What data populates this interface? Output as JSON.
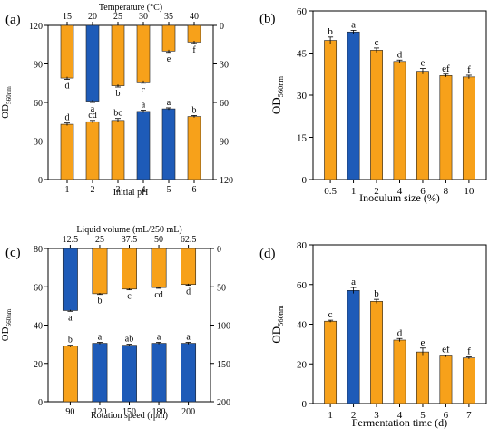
{
  "colors": {
    "orange": "#F7A11A",
    "blue": "#1E5BB8",
    "axis": "#000000"
  },
  "chart_data": [
    {
      "panel": "(a)",
      "type": "bar",
      "bottom": {
        "xlabel": "Initial pH",
        "ylabel": "OD",
        "ylabel_sub": "560nm",
        "ylim": [
          0,
          120
        ],
        "yticks": [
          "0",
          "30",
          "60",
          "90",
          "120"
        ],
        "categories": [
          "1",
          "2",
          "3",
          "4",
          "5",
          "6"
        ],
        "values": [
          43,
          45,
          46,
          53,
          55,
          49
        ],
        "errors": [
          1,
          1,
          1.5,
          1,
          0.8,
          0.8
        ],
        "letters": [
          "d",
          "cd",
          "bc",
          "a",
          "a",
          "b"
        ],
        "colors": [
          "orange",
          "orange",
          "orange",
          "blue",
          "blue",
          "orange"
        ]
      },
      "top": {
        "xlabel": "Temperature (°C)",
        "ylim": [
          0,
          120
        ],
        "yticks": [
          "0",
          "30",
          "60",
          "90",
          "120"
        ],
        "categories": [
          "15",
          "20",
          "25",
          "30",
          "35",
          "40"
        ],
        "values": [
          41,
          59,
          47,
          44,
          20,
          13
        ],
        "errors": [
          1,
          1,
          1,
          1,
          1,
          1
        ],
        "letters": [
          "d",
          "a",
          "b",
          "c",
          "e",
          "f"
        ],
        "colors": [
          "orange",
          "blue",
          "orange",
          "orange",
          "orange",
          "orange"
        ]
      }
    },
    {
      "panel": "(b)",
      "type": "bar",
      "xlabel": "Inoculum size (%)",
      "ylabel": "OD",
      "ylabel_sub": "560nm",
      "ylim": [
        0,
        60
      ],
      "yticks": [
        "0",
        "15",
        "30",
        "45",
        "60"
      ],
      "categories": [
        "0.5",
        "1",
        "2",
        "4",
        "6",
        "8",
        "10"
      ],
      "values": [
        49.5,
        52.5,
        46,
        42,
        38.5,
        37,
        36.5
      ],
      "errors": [
        1.2,
        0.6,
        0.8,
        0.5,
        1.0,
        0.5,
        0.6
      ],
      "letters": [
        "b",
        "a",
        "c",
        "d",
        "e",
        "ef",
        "f"
      ],
      "colors": [
        "orange",
        "blue",
        "orange",
        "orange",
        "orange",
        "orange",
        "orange"
      ]
    },
    {
      "panel": "(c)",
      "type": "bar",
      "bottom": {
        "xlabel": "Rotation speed (rpm)",
        "ylabel": "OD",
        "ylabel_sub": "560nm",
        "ylim": [
          0,
          80
        ],
        "yticks": [
          "0",
          "20",
          "40",
          "60",
          "80"
        ],
        "categories": [
          "90",
          "120",
          "150",
          "180",
          "200"
        ],
        "values": [
          29,
          30.5,
          29.5,
          30.5,
          30.5
        ],
        "errors": [
          0.5,
          0.5,
          0.5,
          0.5,
          0.5
        ],
        "letters": [
          "b",
          "a",
          "ab",
          "a",
          "a"
        ],
        "colors": [
          "orange",
          "blue",
          "blue",
          "blue",
          "blue"
        ]
      },
      "top": {
        "xlabel": "Liquid volume (mL/250 mL)",
        "ylim": [
          0,
          200
        ],
        "yticks": [
          "0",
          "50",
          "100",
          "150",
          "200"
        ],
        "categories": [
          "12.5",
          "25",
          "37.5",
          "50",
          "62.5"
        ],
        "values": [
          81,
          59,
          53,
          51,
          47
        ],
        "errors": [
          1,
          1,
          1,
          1,
          1
        ],
        "letters": [
          "a",
          "b",
          "c",
          "cd",
          "d"
        ],
        "colors": [
          "blue",
          "orange",
          "orange",
          "orange",
          "orange"
        ]
      }
    },
    {
      "panel": "(d)",
      "type": "bar",
      "xlabel": "Fermentation time  (d)",
      "ylabel": "OD",
      "ylabel_sub": "560nm",
      "ylim": [
        0,
        80
      ],
      "yticks": [
        "0",
        "20",
        "40",
        "60",
        "80"
      ],
      "categories": [
        "1",
        "2",
        "3",
        "4",
        "5",
        "6",
        "7"
      ],
      "values": [
        41.5,
        57,
        51.5,
        32,
        26,
        24,
        23
      ],
      "errors": [
        0.5,
        1.5,
        1.0,
        0.8,
        2.0,
        0.5,
        0.5
      ],
      "letters": [
        "c",
        "a",
        "b",
        "d",
        "e",
        "ef",
        "f"
      ],
      "colors": [
        "orange",
        "blue",
        "orange",
        "orange",
        "orange",
        "orange",
        "orange"
      ]
    }
  ]
}
